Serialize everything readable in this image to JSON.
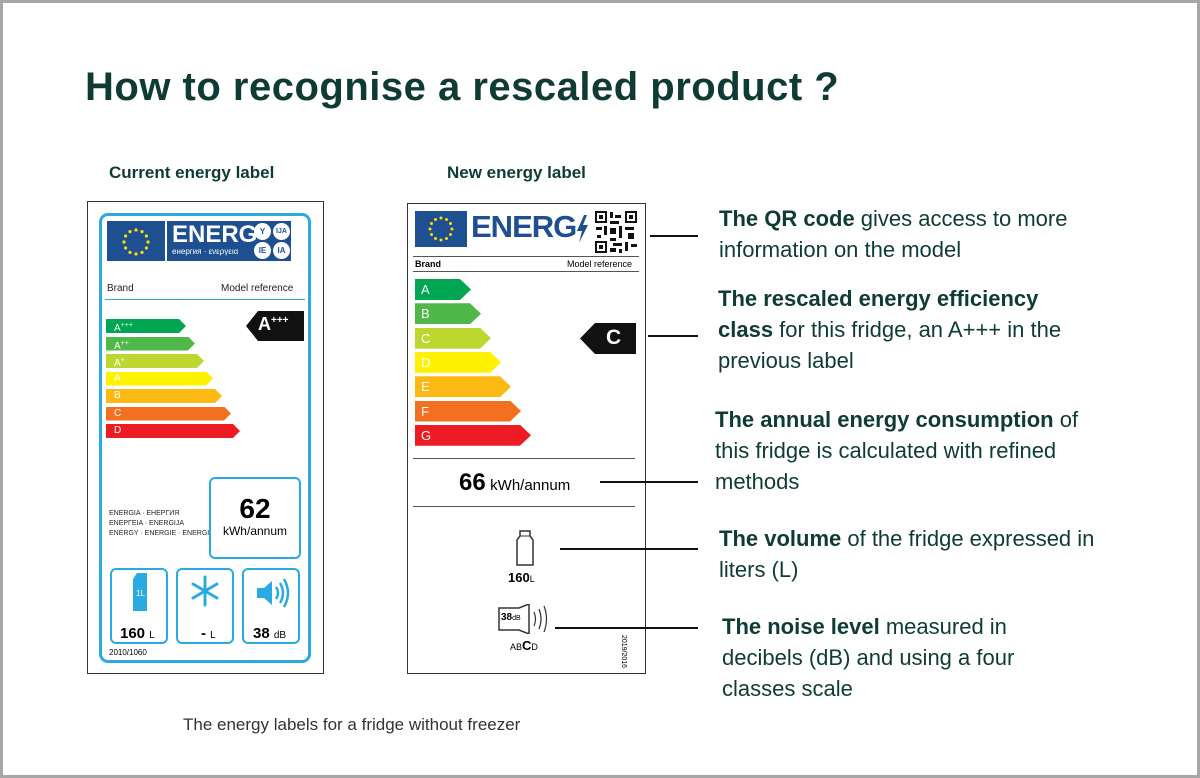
{
  "title": "How to recognise a rescaled product ?",
  "current_label": {
    "heading": "Current energy label",
    "logo": "ENERG",
    "logo_sub": "енергия · ενεργεια",
    "lang_codes": [
      "Y",
      "IJA",
      "IE",
      "IA"
    ],
    "brand": "Brand",
    "model": "Model reference",
    "classes": [
      {
        "letter": "A",
        "sup": "+++"
      },
      {
        "letter": "A",
        "sup": "++"
      },
      {
        "letter": "A",
        "sup": "+"
      },
      {
        "letter": "A"
      },
      {
        "letter": "B"
      },
      {
        "letter": "C"
      },
      {
        "letter": "D"
      }
    ],
    "rating": {
      "letter": "A",
      "sup": "+++"
    },
    "languages": [
      "ENERGIA · ЕНЕРГИЯ",
      "ΕΝΕΡΓΕΙΑ · ENERGIJA",
      "ENERGY · ENERGIE · ENERGI"
    ],
    "consumption": 62,
    "consumption_unit": "kWh/annum",
    "icon_label": "1L",
    "volume": 160,
    "volume_unit": "L",
    "freezer": "-",
    "freezer_unit": "L",
    "noise": 38,
    "noise_unit": "dB",
    "regulation": "2010/1060"
  },
  "new_label": {
    "heading": "New energy label",
    "logo": "ENERG",
    "brand": "Brand",
    "model": "Model reference",
    "classes": [
      "A",
      "B",
      "C",
      "D",
      "E",
      "F",
      "G"
    ],
    "rating": "C",
    "consumption": 66,
    "consumption_unit": "kWh/annum",
    "volume": 160,
    "volume_unit": "L",
    "noise": 38,
    "noise_unit": "dB",
    "noise_classes": [
      "A",
      "B",
      "C",
      "D"
    ],
    "regulation": "2019/2016"
  },
  "annotations": [
    {
      "bold": "The QR code",
      "text": " gives access to more information on the model"
    },
    {
      "bold": "The rescaled energy efficiency class",
      "text": " for this fridge, an A+++ in the previous label"
    },
    {
      "bold": "The annual energy consumption",
      "text": " of this fridge is calculated with refined methods"
    },
    {
      "bold": "The volume",
      "text": " of the fridge expressed in liters (L)"
    },
    {
      "bold": "The noise level",
      "text": " measured in decibels (dB) and using a four classes scale"
    }
  ],
  "caption": "The energy labels for a fridge without freezer"
}
